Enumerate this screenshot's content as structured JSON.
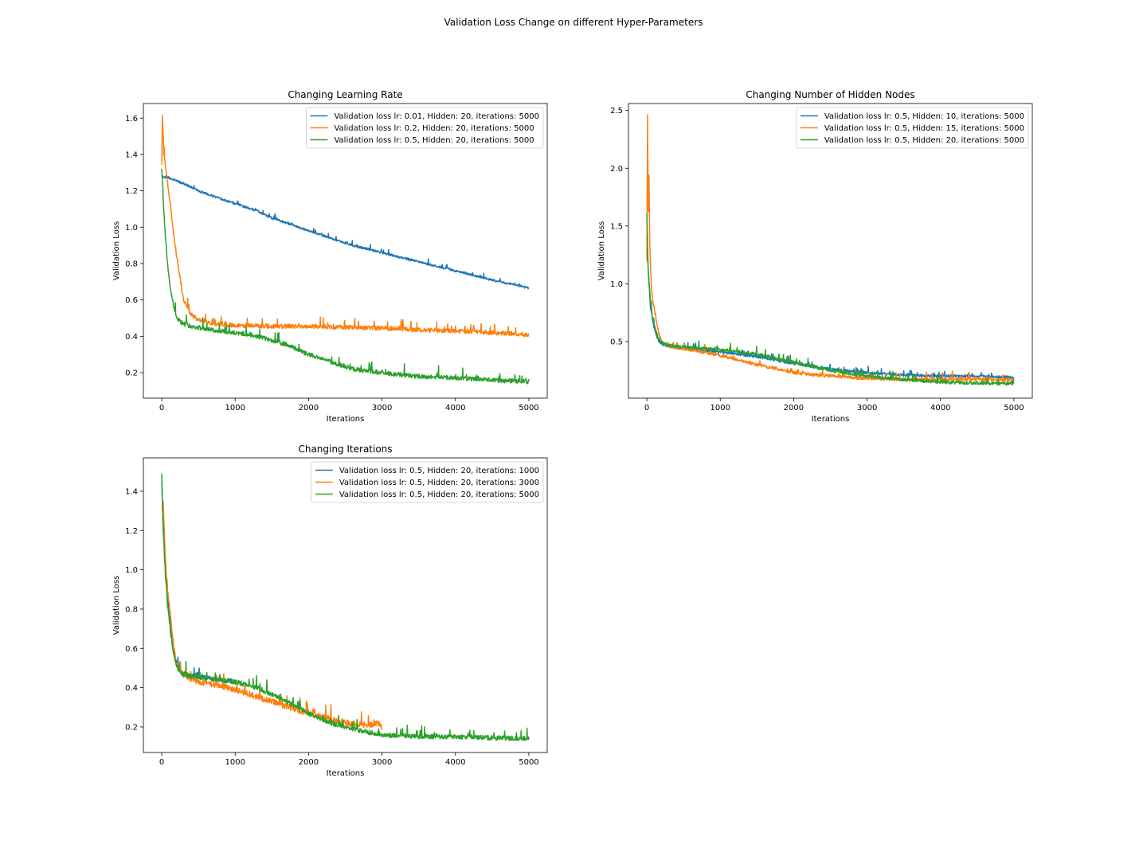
{
  "figure": {
    "title": "Validation Loss Change on different Hyper-Parameters"
  },
  "chart_data": [
    {
      "type": "line",
      "title": "Changing Learning Rate",
      "xlabel": "Iterations",
      "ylabel": "Validation Loss",
      "xlim": [
        -250,
        5250
      ],
      "ylim": [
        0.06,
        1.68
      ],
      "xticks": [
        0,
        1000,
        2000,
        3000,
        4000,
        5000
      ],
      "yticks": [
        0.2,
        0.4,
        0.6,
        0.8,
        1.0,
        1.2,
        1.4,
        1.6
      ],
      "ytick_labels": [
        "0.2",
        "0.4",
        "0.6",
        "0.8",
        "1.0",
        "1.2",
        "1.4",
        "1.6"
      ],
      "legend_position": "upper right",
      "series": [
        {
          "name": "Validation loss lr: 0.01, Hidden: 20, iterations: 5000",
          "color": "#1f77b4",
          "noise": 0.006,
          "x": [
            0,
            100,
            300,
            500,
            700,
            1000,
            1300,
            1500,
            1800,
            2000,
            2300,
            2600,
            3000,
            3500,
            4000,
            4500,
            5000
          ],
          "y": [
            1.28,
            1.27,
            1.24,
            1.2,
            1.17,
            1.13,
            1.09,
            1.05,
            1.01,
            0.98,
            0.94,
            0.9,
            0.86,
            0.81,
            0.76,
            0.71,
            0.665
          ]
        },
        {
          "name": "Validation loss lr: 0.2, Hidden: 20, iterations: 5000",
          "color": "#ff7f0e",
          "noise": 0.012,
          "x": [
            0,
            10,
            30,
            60,
            100,
            150,
            200,
            250,
            300,
            400,
            500,
            700,
            1000,
            1500,
            2000,
            2500,
            3000,
            3500,
            4000,
            4500,
            5000
          ],
          "y": [
            1.35,
            1.61,
            1.4,
            1.3,
            1.18,
            1.0,
            0.85,
            0.72,
            0.6,
            0.52,
            0.49,
            0.47,
            0.46,
            0.455,
            0.455,
            0.45,
            0.445,
            0.435,
            0.43,
            0.42,
            0.41
          ]
        },
        {
          "name": "Validation loss lr: 0.5, Hidden: 20, iterations: 5000",
          "color": "#2ca02c",
          "noise": 0.012,
          "x": [
            0,
            20,
            50,
            80,
            120,
            160,
            200,
            250,
            300,
            400,
            600,
            800,
            1000,
            1200,
            1500,
            1800,
            2000,
            2300,
            2600,
            3000,
            3500,
            4000,
            4500,
            5000
          ],
          "y": [
            1.32,
            1.15,
            0.95,
            0.8,
            0.66,
            0.57,
            0.51,
            0.48,
            0.47,
            0.455,
            0.44,
            0.43,
            0.42,
            0.41,
            0.38,
            0.34,
            0.3,
            0.26,
            0.22,
            0.2,
            0.18,
            0.17,
            0.16,
            0.15
          ]
        }
      ]
    },
    {
      "type": "line",
      "title": "Changing Number of Hidden Nodes",
      "xlabel": "Iterations",
      "ylabel": "Validation Loss",
      "xlim": [
        -250,
        5250
      ],
      "ylim": [
        0.01,
        2.56
      ],
      "xticks": [
        0,
        1000,
        2000,
        3000,
        4000,
        5000
      ],
      "yticks": [
        0.5,
        1.0,
        1.5,
        2.0,
        2.5
      ],
      "ytick_labels": [
        "0.5",
        "1.0",
        "1.5",
        "2.0",
        "2.5"
      ],
      "legend_position": "upper right",
      "series": [
        {
          "name": "Validation loss lr: 0.5, Hidden: 10, iterations: 5000",
          "color": "#1f77b4",
          "noise": 0.012,
          "x": [
            0,
            20,
            50,
            100,
            150,
            200,
            300,
            500,
            1000,
            1500,
            2000,
            2500,
            3000,
            3500,
            4000,
            4500,
            5000
          ],
          "y": [
            1.4,
            1.1,
            0.8,
            0.62,
            0.52,
            0.48,
            0.46,
            0.44,
            0.41,
            0.37,
            0.31,
            0.26,
            0.23,
            0.21,
            0.2,
            0.2,
            0.19
          ]
        },
        {
          "name": "Validation loss lr: 0.5, Hidden: 15, iterations: 5000",
          "color": "#ff7f0e",
          "noise": 0.014,
          "x": [
            0,
            10,
            20,
            30,
            40,
            60,
            80,
            120,
            160,
            200,
            300,
            500,
            1000,
            1500,
            2000,
            2500,
            3000,
            3500,
            4000,
            4500,
            5000
          ],
          "y": [
            1.2,
            2.45,
            1.6,
            1.95,
            1.35,
            1.0,
            0.85,
            0.72,
            0.58,
            0.5,
            0.46,
            0.44,
            0.38,
            0.3,
            0.23,
            0.2,
            0.18,
            0.17,
            0.17,
            0.17,
            0.17
          ]
        },
        {
          "name": "Validation loss lr: 0.5, Hidden: 20, iterations: 5000",
          "color": "#2ca02c",
          "noise": 0.014,
          "x": [
            0,
            20,
            50,
            80,
            120,
            160,
            200,
            300,
            500,
            800,
            1000,
            1500,
            2000,
            2500,
            3000,
            3500,
            4000,
            4500,
            5000
          ],
          "y": [
            1.6,
            1.1,
            0.85,
            0.7,
            0.6,
            0.52,
            0.49,
            0.47,
            0.45,
            0.44,
            0.43,
            0.39,
            0.32,
            0.25,
            0.2,
            0.17,
            0.15,
            0.14,
            0.135
          ]
        }
      ]
    },
    {
      "type": "line",
      "title": "Changing Iterations",
      "xlabel": "Iterations",
      "ylabel": "Validation Loss",
      "xlim": [
        -250,
        5250
      ],
      "ylim": [
        0.07,
        1.57
      ],
      "xticks": [
        0,
        1000,
        2000,
        3000,
        4000,
        5000
      ],
      "yticks": [
        0.2,
        0.4,
        0.6,
        0.8,
        1.0,
        1.2,
        1.4
      ],
      "ytick_labels": [
        "0.2",
        "0.4",
        "0.6",
        "0.8",
        "1.0",
        "1.2",
        "1.4"
      ],
      "legend_position": "upper right",
      "series": [
        {
          "name": "Validation loss lr: 0.5, Hidden: 20, iterations: 1000",
          "color": "#1f77b4",
          "noise": 0.012,
          "x": [
            0,
            20,
            50,
            80,
            120,
            160,
            200,
            250,
            300,
            400,
            600,
            800,
            1000
          ],
          "y": [
            1.45,
            1.2,
            1.0,
            0.85,
            0.7,
            0.6,
            0.53,
            0.49,
            0.47,
            0.46,
            0.45,
            0.44,
            0.43
          ]
        },
        {
          "name": "Validation loss lr: 0.5, Hidden: 20, iterations: 3000",
          "color": "#ff7f0e",
          "noise": 0.015,
          "x": [
            0,
            20,
            50,
            80,
            120,
            160,
            200,
            300,
            500,
            800,
            1000,
            1500,
            1900,
            2200,
            2500,
            2800,
            2950,
            3000
          ],
          "y": [
            1.3,
            1.35,
            1.05,
            0.9,
            0.75,
            0.62,
            0.52,
            0.46,
            0.43,
            0.41,
            0.39,
            0.33,
            0.28,
            0.25,
            0.22,
            0.21,
            0.22,
            0.2
          ]
        },
        {
          "name": "Validation loss lr: 0.5, Hidden: 20, iterations: 5000",
          "color": "#2ca02c",
          "noise": 0.012,
          "x": [
            0,
            20,
            50,
            80,
            120,
            160,
            200,
            250,
            300,
            400,
            600,
            800,
            1000,
            1300,
            1600,
            2000,
            2300,
            2600,
            3000,
            3500,
            4000,
            4500,
            5000
          ],
          "y": [
            1.5,
            1.2,
            0.98,
            0.82,
            0.68,
            0.58,
            0.51,
            0.48,
            0.47,
            0.46,
            0.45,
            0.44,
            0.43,
            0.4,
            0.35,
            0.27,
            0.22,
            0.19,
            0.16,
            0.15,
            0.15,
            0.145,
            0.14
          ]
        }
      ]
    }
  ]
}
